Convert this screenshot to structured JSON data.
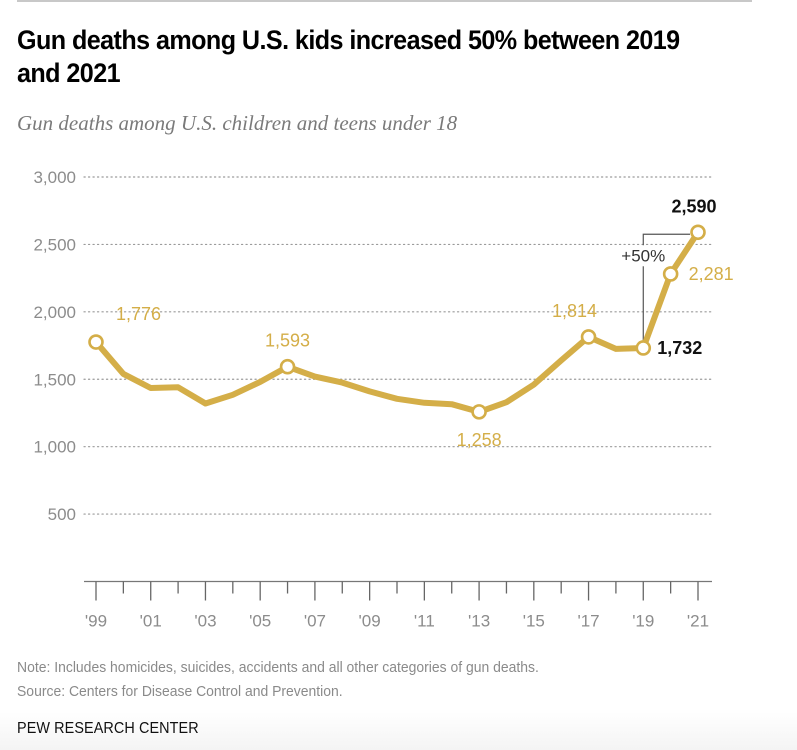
{
  "header": {
    "title": "Gun deaths among U.S. kids increased 50% between 2019 and 2021",
    "subtitle": "Gun deaths among U.S. children and teens under 18"
  },
  "footer": {
    "note": "Note: Includes homicides, suicides, accidents and all other categories of gun deaths.",
    "source": "Source: Centers for Disease Control and Prevention.",
    "brand": "PEW RESEARCH CENTER"
  },
  "colors": {
    "line": "#d4ae48",
    "label_gold": "#d4ae48",
    "label_bold": "#111111",
    "grid": "#9a9a9a",
    "axis_text": "#8c8c8c",
    "annotation": "#555555"
  },
  "chart_data": {
    "type": "line",
    "title": "Gun deaths among U.S. kids increased 50% between 2019 and 2021",
    "subtitle": "Gun deaths among U.S. children and teens under 18",
    "xlabel": "",
    "ylabel": "",
    "ylim": [
      0,
      3000
    ],
    "yticks": [
      500,
      1000,
      1500,
      2000,
      2500,
      3000
    ],
    "ytick_labels": [
      "500",
      "1,000",
      "1,500",
      "2,000",
      "2,500",
      "3,000"
    ],
    "grid": true,
    "x": [
      1999,
      2000,
      2001,
      2002,
      2003,
      2004,
      2005,
      2006,
      2007,
      2008,
      2009,
      2010,
      2011,
      2012,
      2013,
      2014,
      2015,
      2016,
      2017,
      2018,
      2019,
      2020,
      2021
    ],
    "xtick_labels": [
      "'99",
      "'01",
      "'03",
      "'05",
      "'07",
      "'09",
      "'11",
      "'13",
      "'15",
      "'17",
      "'19",
      "'21"
    ],
    "xtick_years": [
      1999,
      2001,
      2003,
      2005,
      2007,
      2009,
      2011,
      2013,
      2015,
      2017,
      2019,
      2021
    ],
    "series": [
      {
        "name": "Gun deaths among U.S. children and teens under 18",
        "values": [
          1776,
          1540,
          1435,
          1440,
          1320,
          1385,
          1480,
          1593,
          1520,
          1475,
          1410,
          1355,
          1325,
          1315,
          1258,
          1330,
          1460,
          1640,
          1814,
          1725,
          1732,
          2281,
          2590
        ]
      }
    ],
    "data_labels": [
      {
        "year": 1999,
        "text": "1,776",
        "style": "gold",
        "pos": "right-above"
      },
      {
        "year": 2006,
        "text": "1,593",
        "style": "gold",
        "pos": "above"
      },
      {
        "year": 2013,
        "text": "1,258",
        "style": "gold",
        "pos": "below"
      },
      {
        "year": 2017,
        "text": "1,814",
        "style": "gold",
        "pos": "left-above"
      },
      {
        "year": 2019,
        "text": "1,732",
        "style": "bold",
        "pos": "right"
      },
      {
        "year": 2020,
        "text": "2,281",
        "style": "gold",
        "pos": "right"
      },
      {
        "year": 2021,
        "text": "2,590",
        "style": "bold",
        "pos": "above"
      }
    ],
    "annotations": [
      {
        "text": "+50%",
        "from_year": 2019,
        "to_year": 2021,
        "type": "bracket"
      }
    ]
  }
}
